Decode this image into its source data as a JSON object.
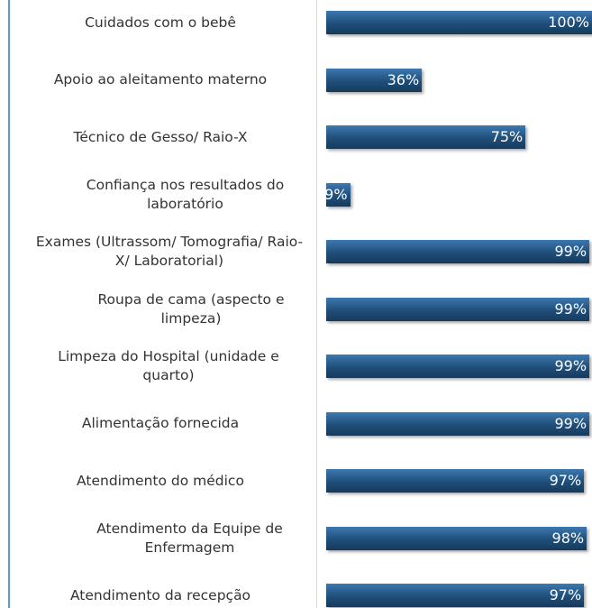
{
  "chart_data": {
    "type": "bar",
    "orientation": "horizontal",
    "categories": [
      "Cuidados com o bebê",
      "Apoio ao aleitamento materno",
      "Técnico de Gesso/ Raio-X",
      "Confiança nos resultados do laboratório",
      "Exames (Ultrassom/ Tomografia/ Raio-X/ Laboratorial)",
      "Roupa de cama (aspecto e limpeza)",
      "Limpeza do Hospital (unidade e quarto)",
      "Alimentação fornecida",
      "Atendimento do médico",
      "Atendimento da Equipe de Enfermagem",
      "Atendimento da recepção"
    ],
    "values": [
      100,
      36,
      75,
      9,
      99,
      99,
      99,
      99,
      97,
      98,
      97
    ],
    "value_labels": [
      "100%",
      "36%",
      "75%",
      "9%",
      "99%",
      "99%",
      "99%",
      "99%",
      "97%",
      "98%",
      "97%"
    ],
    "color": "#1f4e79",
    "xlim": [
      0,
      100
    ]
  }
}
